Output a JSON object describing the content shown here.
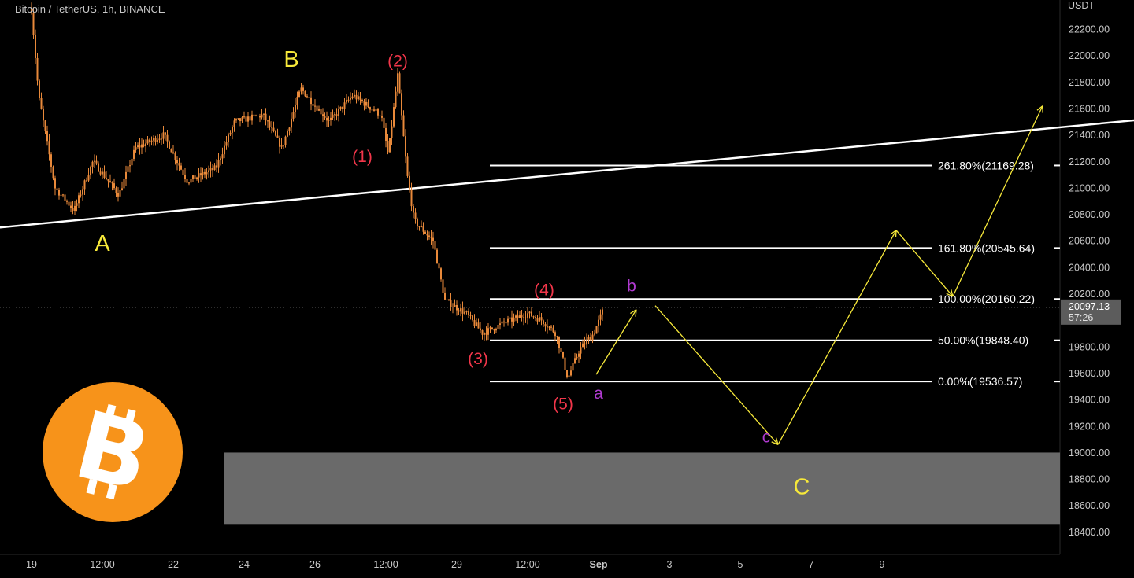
{
  "symbol": "Bitcoin / TetherUS, 1h, BINANCE",
  "currency": "USDT",
  "colors": {
    "background": "#000000",
    "candle": "#e8893a",
    "axis_text": "#c8c8c8",
    "fib_line": "#ffffff",
    "wave_red": "#f2364a",
    "wave_yellow": "#f7e93a",
    "wave_purple": "#b03ad0",
    "zone": "#6a6a6a",
    "price_tag": "#5c5c5c",
    "logo": "#f7931a"
  },
  "icons": {
    "logo": "bitcoin-logo-icon"
  },
  "price_tag": {
    "price": "20097.13",
    "countdown": "57:26"
  },
  "chart_data": {
    "type": "candlestick",
    "y_ticks": [
      22200,
      22000,
      21800,
      21600,
      21400,
      21200,
      21000,
      20800,
      20600,
      20400,
      20200,
      19800,
      19600,
      19400,
      19200,
      19000,
      18800,
      18600,
      18400
    ],
    "y_range": [
      18230,
      22420
    ],
    "x_labels": [
      "19",
      "12:00",
      "22",
      "24",
      "26",
      "12:00",
      "29",
      "12:00",
      "Sep",
      "3",
      "5",
      "7",
      "9"
    ],
    "price_path": [
      {
        "t": 0.0,
        "p": 22350
      },
      {
        "t": 0.15,
        "p": 21700
      },
      {
        "t": 0.5,
        "p": 21000
      },
      {
        "t": 0.9,
        "p": 20830
      },
      {
        "t": 1.3,
        "p": 21200
      },
      {
        "t": 1.85,
        "p": 20950
      },
      {
        "t": 2.2,
        "p": 21300
      },
      {
        "t": 2.8,
        "p": 21400
      },
      {
        "t": 3.3,
        "p": 21050
      },
      {
        "t": 3.9,
        "p": 21150
      },
      {
        "t": 4.3,
        "p": 21500
      },
      {
        "t": 4.9,
        "p": 21550
      },
      {
        "t": 5.3,
        "p": 21300
      },
      {
        "t": 5.7,
        "p": 21750
      },
      {
        "t": 6.3,
        "p": 21500
      },
      {
        "t": 6.8,
        "p": 21700
      },
      {
        "t": 7.4,
        "p": 21550
      },
      {
        "t": 7.55,
        "p": 21250
      },
      {
        "t": 7.75,
        "p": 21850
      },
      {
        "t": 7.95,
        "p": 21100
      },
      {
        "t": 8.1,
        "p": 20750
      },
      {
        "t": 8.5,
        "p": 20600
      },
      {
        "t": 8.75,
        "p": 20150
      },
      {
        "t": 9.2,
        "p": 20050
      },
      {
        "t": 9.55,
        "p": 19900
      },
      {
        "t": 10.0,
        "p": 19980
      },
      {
        "t": 10.5,
        "p": 20050
      },
      {
        "t": 10.8,
        "p": 20000
      },
      {
        "t": 11.1,
        "p": 19900
      },
      {
        "t": 11.35,
        "p": 19560
      },
      {
        "t": 11.6,
        "p": 19780
      },
      {
        "t": 11.9,
        "p": 19900
      },
      {
        "t": 12.12,
        "p": 20097
      }
    ],
    "fib_levels": [
      {
        "ratio": "261.80%",
        "label": "261.80%(21169.28)",
        "price": 21169.28
      },
      {
        "ratio": "161.80%",
        "label": "161.80%(20545.64)",
        "price": 20545.64
      },
      {
        "ratio": "100.00%",
        "label": "100.00%(20160.22)",
        "price": 20160.22
      },
      {
        "ratio": "50.00%",
        "label": "50.00%(19848.40)",
        "price": 19848.4
      },
      {
        "ratio": "0.00%",
        "label": "0.00%(19536.57)",
        "price": 19536.57
      }
    ],
    "support_zone": {
      "from": 18460,
      "to": 19000
    },
    "trendline": {
      "from": {
        "t": -0.7,
        "p": 20700
      },
      "to": {
        "t": 32.5,
        "p": 21820
      }
    },
    "wave_labels": [
      {
        "text": "A",
        "color": "yellow",
        "t": 1.5,
        "p": 20570
      },
      {
        "text": "B",
        "color": "yellow",
        "t": 5.5,
        "p": 21960
      },
      {
        "text": "(2)",
        "color": "red",
        "t": 7.75,
        "p": 21950
      },
      {
        "text": "(1)",
        "color": "red",
        "t": 7.0,
        "p": 21230
      },
      {
        "text": "(3)",
        "color": "red",
        "t": 9.45,
        "p": 19700
      },
      {
        "text": "(4)",
        "color": "red",
        "t": 10.85,
        "p": 20220
      },
      {
        "text": "(5)",
        "color": "red",
        "t": 11.25,
        "p": 19360
      },
      {
        "text": "a",
        "color": "purple",
        "t": 12.0,
        "p": 19440
      },
      {
        "text": "b",
        "color": "purple",
        "t": 12.7,
        "p": 20250
      },
      {
        "text": "c",
        "color": "purple",
        "t": 15.55,
        "p": 19110
      },
      {
        "text": "C",
        "color": "yellow",
        "t": 16.3,
        "p": 18730
      }
    ],
    "projection_arrows": [
      {
        "from": {
          "t": 11.95,
          "p": 19590
        },
        "to": {
          "t": 12.8,
          "p": 20080
        }
      },
      {
        "from": {
          "t": 13.2,
          "p": 20110
        },
        "to": {
          "t": 15.8,
          "p": 19060
        }
      },
      {
        "from": {
          "t": 15.8,
          "p": 19060
        },
        "to": {
          "t": 18.3,
          "p": 20680
        }
      },
      {
        "from": {
          "t": 18.3,
          "p": 20680
        },
        "to": {
          "t": 19.5,
          "p": 20180
        }
      },
      {
        "from": {
          "t": 19.5,
          "p": 20180
        },
        "to": {
          "t": 21.4,
          "p": 21620
        }
      }
    ]
  }
}
